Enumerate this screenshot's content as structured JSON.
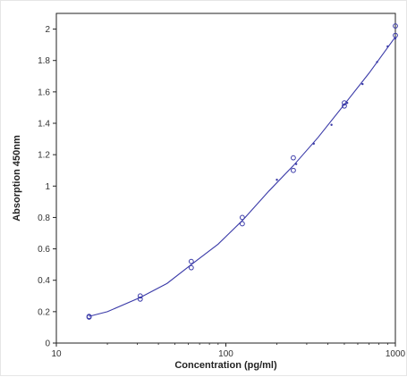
{
  "chart_data": {
    "type": "scatter",
    "title": "",
    "xlabel": "Concentration (pg/ml)",
    "ylabel": "Absorption 450nm",
    "x_scale": "log",
    "xlim": [
      10,
      1000
    ],
    "ylim": [
      0,
      2.1
    ],
    "x_ticks": [
      10,
      100,
      1000
    ],
    "x_tick_labels": [
      "10",
      "100",
      "1000"
    ],
    "y_ticks": [
      0,
      0.2,
      0.4,
      0.6,
      0.8,
      1,
      1.2,
      1.4,
      1.6,
      1.8,
      2
    ],
    "y_tick_labels": [
      "0",
      "0.2",
      "0.4",
      "0.6",
      "0.8",
      "1",
      "1.2",
      "1.4",
      "1.6",
      "1.8",
      "2"
    ],
    "grid": false,
    "legend": "none",
    "colors": {
      "series": "#3a3aa8",
      "axis": "#222222"
    },
    "series": [
      {
        "kind": "points",
        "marker": "open-circle",
        "x": [
          15.6,
          15.6,
          31.25,
          31.25,
          62.5,
          62.5,
          125,
          125,
          250,
          250,
          500,
          500,
          1000,
          1000
        ],
        "y": [
          0.17,
          0.165,
          0.3,
          0.28,
          0.52,
          0.48,
          0.8,
          0.76,
          1.18,
          1.1,
          1.53,
          1.51,
          2.02,
          1.96
        ]
      },
      {
        "kind": "fit-line",
        "x": [
          15.6,
          20,
          31.25,
          45,
          62.5,
          90,
          125,
          180,
          250,
          350,
          500,
          700,
          1000
        ],
        "y": [
          0.17,
          0.2,
          0.29,
          0.38,
          0.5,
          0.63,
          0.78,
          0.97,
          1.13,
          1.31,
          1.52,
          1.72,
          1.95
        ]
      },
      {
        "kind": "confidence-dots",
        "x": [
          200,
          260,
          330,
          420,
          520,
          640,
          780,
          900,
          1000
        ],
        "y": [
          1.04,
          1.14,
          1.27,
          1.39,
          1.53,
          1.65,
          1.79,
          1.89,
          1.94
        ]
      }
    ]
  }
}
